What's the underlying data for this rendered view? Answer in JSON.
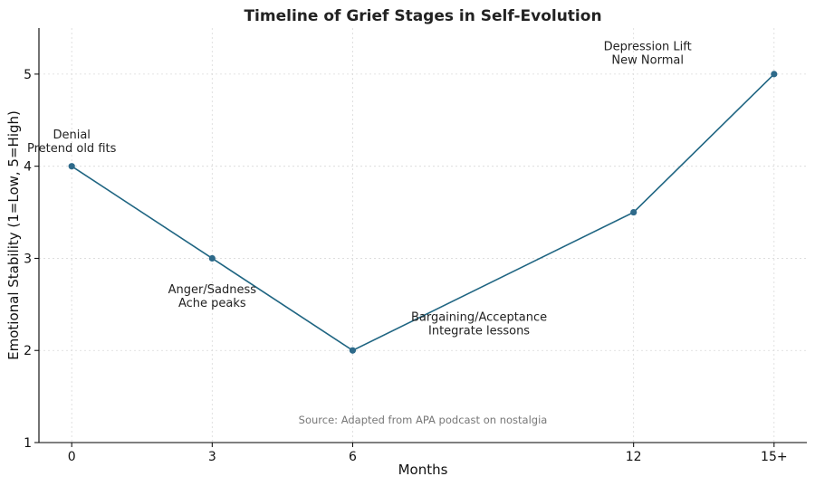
{
  "chart_data": {
    "type": "line",
    "title": "Timeline of Grief Stages in Self-Evolution",
    "xlabel": "Months",
    "ylabel": "Emotional Stability (1=Low, 5=High)",
    "categories": [
      "0",
      "3",
      "6",
      "12",
      "15+"
    ],
    "x": [
      0,
      3,
      6,
      12,
      15
    ],
    "values": [
      4,
      3,
      2,
      3.5,
      5
    ],
    "xlim": [
      -0.7,
      15.7
    ],
    "ylim": [
      1,
      5.5
    ],
    "yticks": [
      1,
      2,
      3,
      4,
      5
    ],
    "grid": true,
    "colors": {
      "line": "#1f6582",
      "marker": "#2e6a8a"
    },
    "annotations": [
      {
        "lines": [
          "Denial",
          "Pretend old fits"
        ],
        "x": 0,
        "y": 4.3,
        "align": "middle"
      },
      {
        "lines": [
          "Anger/Sadness",
          "Ache peaks"
        ],
        "x": 3,
        "y": 2.62,
        "align": "middle"
      },
      {
        "lines": [
          "Bargaining/Acceptance",
          "Integrate lessons"
        ],
        "x": 8.7,
        "y": 2.32,
        "align": "middle"
      },
      {
        "lines": [
          "Depression Lift",
          "New Normal"
        ],
        "x": 12.3,
        "y": 5.26,
        "align": "middle"
      }
    ],
    "source": "Source: Adapted from APA podcast on nostalgia"
  }
}
